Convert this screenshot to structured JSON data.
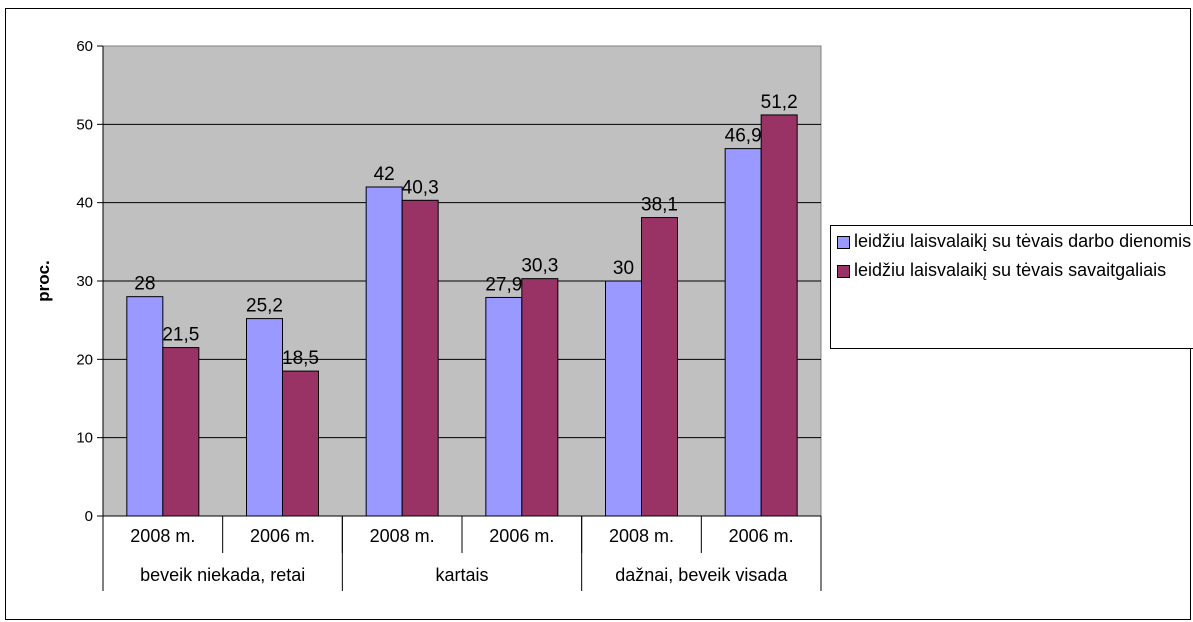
{
  "chart_data": {
    "type": "bar",
    "ylabel": "proc.",
    "ylim": [
      0,
      60
    ],
    "yticks": [
      "0",
      "10",
      "20",
      "30",
      "40",
      "50",
      "60"
    ],
    "grid": true,
    "plot_background": "#c0c0c0",
    "legend_position": "right",
    "categories": [
      "2008 m.",
      "2006 m.",
      "2008 m.",
      "2006 m.",
      "2008 m.",
      "2006 m."
    ],
    "groups": [
      {
        "label": "beveik niekada, retai",
        "span": 2
      },
      {
        "label": "kartais",
        "span": 2
      },
      {
        "label": "dažnai, beveik visada",
        "span": 2
      }
    ],
    "series": [
      {
        "name": "leidžiu laisvalaikį su tėvais darbo dienomis",
        "color": "#9999ff",
        "values": [
          28,
          25.2,
          42,
          27.9,
          30,
          46.9
        ],
        "labels": [
          "28",
          "25,2",
          "42",
          "27,9",
          "30",
          "46,9"
        ]
      },
      {
        "name": "leidžiu laisvalaikį su tėvais savaitgaliais",
        "color": "#993366",
        "values": [
          21.5,
          18.5,
          40.3,
          30.3,
          38.1,
          51.2
        ],
        "labels": [
          "21,5",
          "18,5",
          "40,3",
          "30,3",
          "38,1",
          "51,2"
        ]
      }
    ]
  }
}
